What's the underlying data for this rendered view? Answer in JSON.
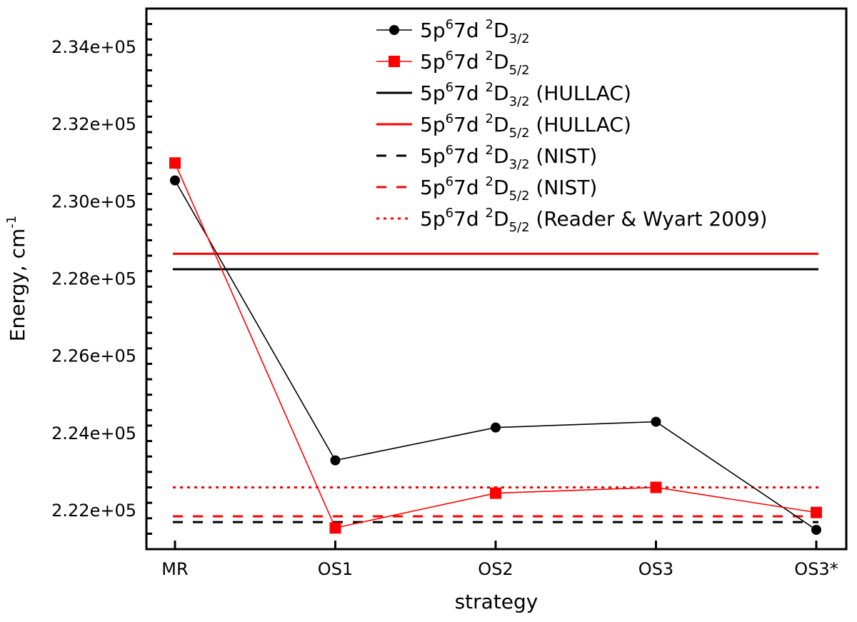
{
  "chart_data": {
    "type": "line",
    "xlabel": "strategy",
    "ylabel": "Energy, cm",
    "ylabel_sup": "-1",
    "categories": [
      "MR",
      "OS1",
      "OS2",
      "OS3",
      "OS3*"
    ],
    "ylim": [
      221000,
      235000
    ],
    "yticks": [
      {
        "value": 222000,
        "label": "2.22e+05"
      },
      {
        "value": 224000,
        "label": "2.24e+05"
      },
      {
        "value": 226000,
        "label": "2.26e+05"
      },
      {
        "value": 228000,
        "label": "2.28e+05"
      },
      {
        "value": 230000,
        "label": "2.30e+05"
      },
      {
        "value": 232000,
        "label": "2.32e+05"
      },
      {
        "value": 234000,
        "label": "2.34e+05"
      }
    ],
    "series": [
      {
        "name": "5p67d 2D3/2",
        "label": {
          "base": "5p",
          "sup1": "6",
          "mid": "7d ",
          "sup2": "2",
          "term": "D",
          "sub": "3/2",
          "suffix": ""
        },
        "kind": "markers",
        "marker": "circle",
        "color": "#000000",
        "values": [
          230550,
          223300,
          224150,
          224300,
          221500
        ]
      },
      {
        "name": "5p67d 2D5/2",
        "label": {
          "base": "5p",
          "sup1": "6",
          "mid": "7d ",
          "sup2": "2",
          "term": "D",
          "sub": "5/2",
          "suffix": ""
        },
        "kind": "markers",
        "marker": "square",
        "color": "#ff0000",
        "values": [
          231000,
          221550,
          222450,
          222600,
          221950
        ]
      },
      {
        "name": "5p67d 2D3/2 (HULLAC)",
        "label": {
          "base": "5p",
          "sup1": "6",
          "mid": "7d ",
          "sup2": "2",
          "term": "D",
          "sub": "3/2",
          "suffix": " (HULLAC)"
        },
        "kind": "hline",
        "dash": "solid",
        "color": "#000000",
        "value": 228250
      },
      {
        "name": "5p67d 2D5/2 (HULLAC)",
        "label": {
          "base": "5p",
          "sup1": "6",
          "mid": "7d ",
          "sup2": "2",
          "term": "D",
          "sub": "5/2",
          "suffix": " (HULLAC)"
        },
        "kind": "hline",
        "dash": "solid",
        "color": "#ff0000",
        "value": 228650
      },
      {
        "name": "5p67d 2D3/2 (NIST)",
        "label": {
          "base": "5p",
          "sup1": "6",
          "mid": "7d ",
          "sup2": "2",
          "term": "D",
          "sub": "3/2",
          "suffix": " (NIST)"
        },
        "kind": "hline",
        "dash": "dashed",
        "color": "#000000",
        "value": 221700
      },
      {
        "name": "5p67d 2D5/2 (NIST)",
        "label": {
          "base": "5p",
          "sup1": "6",
          "mid": "7d ",
          "sup2": "2",
          "term": "D",
          "sub": "5/2",
          "suffix": " (NIST)"
        },
        "kind": "hline",
        "dash": "dashed",
        "color": "#ff0000",
        "value": 221850
      },
      {
        "name": "5p67d 2D5/2 (Reader & Wyart 2009)",
        "label": {
          "base": "5p",
          "sup1": "6",
          "mid": "7d ",
          "sup2": "2",
          "term": "D",
          "sub": "5/2",
          "suffix": " (Reader & Wyart 2009)"
        },
        "kind": "hline",
        "dash": "dotted",
        "color": "#ff0000",
        "value": 222600
      }
    ],
    "legend_position": "top-right",
    "grid": false
  }
}
